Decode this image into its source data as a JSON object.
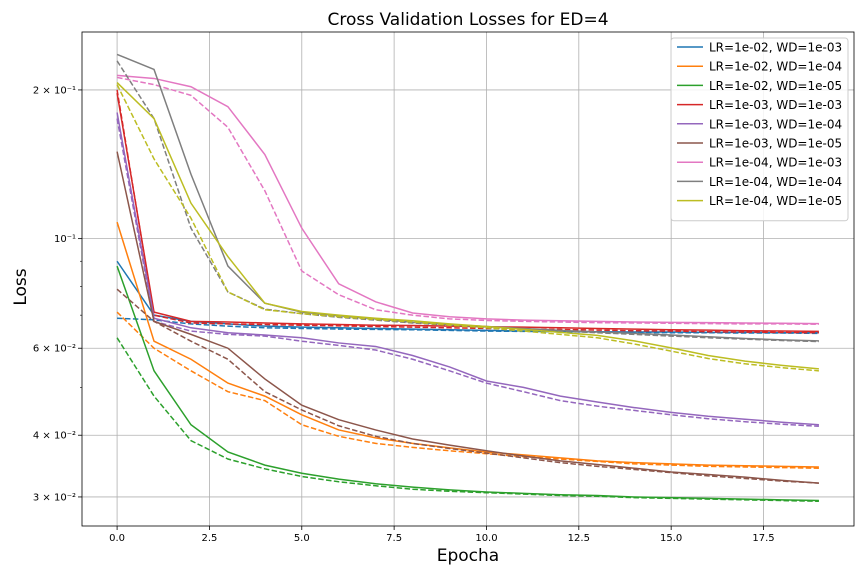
{
  "chart_data": {
    "type": "line",
    "title": "Cross Validation Losses for ED=4",
    "xlabel": "Epocha",
    "ylabel": "Loss",
    "yscale": "log",
    "xlim": [
      -0.95,
      19.95
    ],
    "ylim": [
      0.0262,
      0.262
    ],
    "grid": true,
    "legend_placement": "top-right",
    "x_ticks": [
      0,
      2.5,
      5,
      7.5,
      10,
      12.5,
      15,
      17.5
    ],
    "x_tick_labels": [
      "0.0",
      "2.5",
      "5.0",
      "7.5",
      "10.0",
      "12.5",
      "15.0",
      "17.5"
    ],
    "y_major_ticks": [
      0.03,
      0.04,
      0.06,
      0.1,
      0.2
    ],
    "y_major_tick_labels": [
      "3 × 10⁻²",
      "4 × 10⁻²",
      "6 × 10⁻²",
      "10⁻¹",
      "2 × 10⁻¹"
    ],
    "y_minor_ticks": [
      0.05,
      0.07,
      0.08,
      0.09
    ],
    "x": [
      0,
      1,
      2,
      3,
      4,
      5,
      6,
      7,
      8,
      9,
      10,
      11,
      12,
      13,
      14,
      15,
      16,
      17,
      18,
      19
    ],
    "series": [
      {
        "name": "LR=1e-02, WD=1e-03",
        "color": "#1f77b4",
        "values": [
          0.09,
          0.07,
          0.068,
          0.0672,
          0.0665,
          0.0662,
          0.066,
          0.0658,
          0.0656,
          0.0654,
          0.0652,
          0.065,
          0.0649,
          0.0648,
          0.0647,
          0.0647,
          0.0646,
          0.0646,
          0.0645,
          0.0645
        ],
        "dashed_values": [
          0.069,
          0.0685,
          0.0672,
          0.0665,
          0.066,
          0.0658,
          0.0656,
          0.0655,
          0.0654,
          0.0652,
          0.065,
          0.0649,
          0.0648,
          0.0647,
          0.0646,
          0.0645,
          0.0645,
          0.0644,
          0.0644,
          0.0643
        ]
      },
      {
        "name": "LR=1e-02, WD=1e-04",
        "color": "#ff7f0e",
        "values": [
          0.108,
          0.062,
          0.057,
          0.051,
          0.048,
          0.044,
          0.041,
          0.0395,
          0.0385,
          0.0377,
          0.037,
          0.0365,
          0.036,
          0.0355,
          0.0352,
          0.035,
          0.0348,
          0.0347,
          0.0346,
          0.0345
        ],
        "dashed_values": [
          0.071,
          0.06,
          0.054,
          0.049,
          0.047,
          0.042,
          0.0398,
          0.0385,
          0.0378,
          0.0372,
          0.0367,
          0.0362,
          0.0358,
          0.0354,
          0.035,
          0.0348,
          0.0346,
          0.0345,
          0.0344,
          0.0343
        ]
      },
      {
        "name": "LR=1e-02, WD=1e-05",
        "color": "#2ca02c",
        "values": [
          0.088,
          0.054,
          0.042,
          0.037,
          0.0348,
          0.0335,
          0.0326,
          0.0319,
          0.0314,
          0.031,
          0.0307,
          0.0305,
          0.0303,
          0.0302,
          0.03,
          0.0299,
          0.0298,
          0.0297,
          0.0296,
          0.0295
        ],
        "dashed_values": [
          0.063,
          0.048,
          0.039,
          0.0358,
          0.0342,
          0.033,
          0.0322,
          0.0316,
          0.0311,
          0.0308,
          0.0306,
          0.0304,
          0.0302,
          0.0301,
          0.0299,
          0.0298,
          0.0297,
          0.0296,
          0.0295,
          0.0294
        ]
      },
      {
        "name": "LR=1e-03, WD=1e-03",
        "color": "#d62728",
        "values": [
          0.197,
          0.071,
          0.068,
          0.0678,
          0.0675,
          0.0672,
          0.067,
          0.0668,
          0.0667,
          0.0665,
          0.0663,
          0.0662,
          0.066,
          0.0658,
          0.0656,
          0.0654,
          0.0653,
          0.0651,
          0.065,
          0.0649
        ],
        "dashed_values": [
          0.2,
          0.07,
          0.0675,
          0.0672,
          0.067,
          0.0668,
          0.0666,
          0.0664,
          0.0662,
          0.066,
          0.0658,
          0.0656,
          0.0655,
          0.0653,
          0.0651,
          0.065,
          0.0648,
          0.0647,
          0.0646,
          0.0645
        ]
      },
      {
        "name": "LR=1e-03, WD=1e-04",
        "color": "#9467bd",
        "values": [
          0.18,
          0.069,
          0.066,
          0.0645,
          0.0638,
          0.063,
          0.0615,
          0.0605,
          0.058,
          0.055,
          0.0515,
          0.05,
          0.048,
          0.0467,
          0.0455,
          0.0445,
          0.0437,
          0.0431,
          0.0425,
          0.042
        ],
        "dashed_values": [
          0.175,
          0.068,
          0.065,
          0.064,
          0.0635,
          0.062,
          0.0608,
          0.0595,
          0.057,
          0.054,
          0.051,
          0.049,
          0.047,
          0.0458,
          0.0449,
          0.044,
          0.0432,
          0.0426,
          0.0421,
          0.0417
        ]
      },
      {
        "name": "LR=1e-03, WD=1e-05",
        "color": "#8c564b",
        "values": [
          0.15,
          0.068,
          0.064,
          0.06,
          0.052,
          0.046,
          0.043,
          0.041,
          0.0393,
          0.0382,
          0.0372,
          0.0363,
          0.0355,
          0.0349,
          0.0343,
          0.0337,
          0.0333,
          0.0329,
          0.0324,
          0.032
        ],
        "dashed_values": [
          0.079,
          0.068,
          0.062,
          0.057,
          0.049,
          0.045,
          0.0418,
          0.0398,
          0.0385,
          0.0376,
          0.0368,
          0.036,
          0.0352,
          0.0346,
          0.0341,
          0.0336,
          0.0331,
          0.0327,
          0.0323,
          0.032
        ]
      },
      {
        "name": "LR=1e-04, WD=1e-03",
        "color": "#e377c2",
        "values": [
          0.214,
          0.211,
          0.203,
          0.185,
          0.148,
          0.105,
          0.081,
          0.0745,
          0.0707,
          0.0695,
          0.0688,
          0.0684,
          0.0682,
          0.068,
          0.0678,
          0.0677,
          0.0676,
          0.0675,
          0.0674,
          0.0673
        ],
        "dashed_values": [
          0.212,
          0.205,
          0.195,
          0.168,
          0.125,
          0.086,
          0.077,
          0.0718,
          0.07,
          0.0688,
          0.0683,
          0.068,
          0.0678,
          0.0676,
          0.0675,
          0.0674,
          0.0673,
          0.0672,
          0.0672,
          0.0671
        ]
      },
      {
        "name": "LR=1e-04, WD=1e-04",
        "color": "#7f7f7f",
        "values": [
          0.236,
          0.22,
          0.135,
          0.088,
          0.074,
          0.071,
          0.0698,
          0.0688,
          0.0677,
          0.067,
          0.0664,
          0.0658,
          0.0652,
          0.0647,
          0.0643,
          0.0638,
          0.0633,
          0.0628,
          0.0624,
          0.0621
        ],
        "dashed_values": [
          0.229,
          0.175,
          0.105,
          0.078,
          0.072,
          0.0705,
          0.0693,
          0.0684,
          0.0675,
          0.0668,
          0.0662,
          0.0656,
          0.065,
          0.0645,
          0.064,
          0.0635,
          0.063,
          0.0626,
          0.0622,
          0.0619
        ]
      },
      {
        "name": "LR=1e-04, WD=1e-05",
        "color": "#bcbd22",
        "values": [
          0.207,
          0.175,
          0.118,
          0.092,
          0.074,
          0.0712,
          0.07,
          0.069,
          0.0682,
          0.0672,
          0.0664,
          0.0655,
          0.0646,
          0.0637,
          0.0621,
          0.0601,
          0.058,
          0.0565,
          0.0554,
          0.0545
        ],
        "dashed_values": [
          0.205,
          0.145,
          0.11,
          0.078,
          0.0718,
          0.0705,
          0.0695,
          0.0686,
          0.0678,
          0.0668,
          0.066,
          0.065,
          0.064,
          0.063,
          0.0612,
          0.0592,
          0.0572,
          0.0558,
          0.0548,
          0.054
        ]
      }
    ]
  }
}
